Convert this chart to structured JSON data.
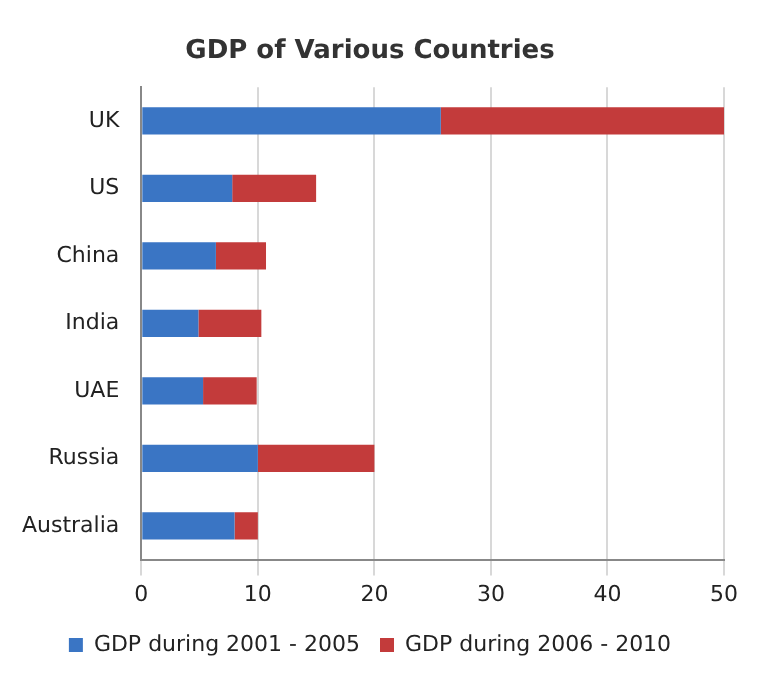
{
  "chart_data": {
    "type": "bar",
    "title": "GDP of Various Countries",
    "orientation": "horizontal",
    "stacked": true,
    "categories": [
      "UK",
      "US",
      "China",
      "India",
      "UAE",
      "Russia",
      "Australia"
    ],
    "series": [
      {
        "name": "GDP during 2001 - 2005",
        "color": "#3a75c4",
        "values": [
          25.7,
          7.8,
          6.4,
          4.9,
          5.3,
          10.0,
          8.0
        ]
      },
      {
        "name": "GDP during 2006 - 2010",
        "color": "#c33b3b",
        "values": [
          24.3,
          7.2,
          4.3,
          5.4,
          4.6,
          10.0,
          2.0
        ]
      }
    ],
    "xlim": [
      0,
      50
    ],
    "xticks": [
      0,
      10,
      20,
      30,
      40,
      50
    ],
    "grid": "x",
    "legend": "bottom"
  }
}
